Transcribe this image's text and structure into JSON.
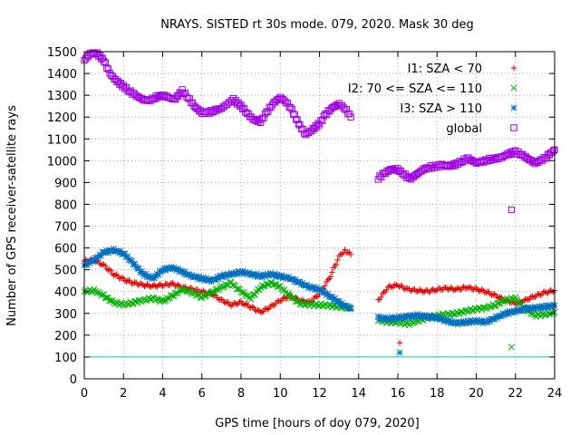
{
  "chart_data": {
    "type": "scatter",
    "title": "NRAYS. SISTED rt 30s mode. 079, 2020. Mask 30 deg",
    "xlabel": "GPS time [hours of doy 079, 2020]",
    "ylabel": "Number of GPS receiver-satellite rays",
    "xlim": [
      0,
      24
    ],
    "ylim": [
      0,
      1500
    ],
    "x_ticks": [
      0,
      2,
      4,
      6,
      8,
      10,
      12,
      14,
      16,
      18,
      20,
      22,
      24
    ],
    "y_ticks": [
      0,
      100,
      200,
      300,
      400,
      500,
      600,
      700,
      800,
      900,
      1000,
      1100,
      1200,
      1300,
      1400,
      1500
    ],
    "grid": true,
    "legend_position": "top-right",
    "reference_line": {
      "y": 100,
      "color": "#00c8d8"
    },
    "series": [
      {
        "name": "I1: SZA < 70",
        "marker": "+",
        "color": "#e00000",
        "points": [
          [
            0,
            540
          ],
          [
            0.5,
            545
          ],
          [
            1,
            520
          ],
          [
            1.5,
            480
          ],
          [
            2,
            455
          ],
          [
            2.5,
            440
          ],
          [
            3,
            430
          ],
          [
            3.5,
            425
          ],
          [
            4,
            430
          ],
          [
            4.5,
            435
          ],
          [
            5,
            420
          ],
          [
            5.5,
            410
          ],
          [
            6,
            400
          ],
          [
            6.5,
            390
          ],
          [
            7,
            360
          ],
          [
            7.5,
            340
          ],
          [
            8,
            350
          ],
          [
            8.5,
            330
          ],
          [
            9,
            305
          ],
          [
            9.5,
            330
          ],
          [
            10,
            360
          ],
          [
            10.5,
            380
          ],
          [
            11,
            360
          ],
          [
            11.5,
            350
          ],
          [
            12,
            390
          ],
          [
            12.5,
            460
          ],
          [
            13,
            560
          ],
          [
            13.3,
            590
          ],
          [
            13.6,
            570
          ],
          [
            15,
            360
          ],
          [
            15.5,
            420
          ],
          [
            16,
            430
          ],
          [
            16.5,
            410
          ],
          [
            17,
            405
          ],
          [
            17.5,
            400
          ],
          [
            18,
            410
          ],
          [
            18.5,
            415
          ],
          [
            19,
            410
          ],
          [
            19.5,
            420
          ],
          [
            20,
            410
          ],
          [
            20.5,
            400
          ],
          [
            21,
            380
          ],
          [
            21.5,
            360
          ],
          [
            22,
            345
          ],
          [
            22.5,
            360
          ],
          [
            23,
            380
          ],
          [
            23.5,
            395
          ],
          [
            24,
            405
          ],
          [
            16.1,
            165
          ]
        ]
      },
      {
        "name": "I2: 70 <= SZA <= 110",
        "marker": "x",
        "color": "#00b000",
        "points": [
          [
            0,
            400
          ],
          [
            0.5,
            405
          ],
          [
            1,
            380
          ],
          [
            1.5,
            350
          ],
          [
            2,
            340
          ],
          [
            2.5,
            350
          ],
          [
            3,
            360
          ],
          [
            3.5,
            370
          ],
          [
            4,
            355
          ],
          [
            4.5,
            380
          ],
          [
            5,
            410
          ],
          [
            5.5,
            395
          ],
          [
            6,
            375
          ],
          [
            6.5,
            395
          ],
          [
            7,
            420
          ],
          [
            7.5,
            440
          ],
          [
            8,
            400
          ],
          [
            8.5,
            370
          ],
          [
            9,
            420
          ],
          [
            9.5,
            440
          ],
          [
            10,
            420
          ],
          [
            10.5,
            380
          ],
          [
            11,
            345
          ],
          [
            11.5,
            340
          ],
          [
            12,
            340
          ],
          [
            12.5,
            335
          ],
          [
            13,
            330
          ],
          [
            13.6,
            325
          ],
          [
            15,
            270
          ],
          [
            15.5,
            260
          ],
          [
            16,
            260
          ],
          [
            16.5,
            250
          ],
          [
            17,
            265
          ],
          [
            17.5,
            280
          ],
          [
            18,
            290
          ],
          [
            18.5,
            295
          ],
          [
            19,
            300
          ],
          [
            19.5,
            310
          ],
          [
            20,
            320
          ],
          [
            20.5,
            325
          ],
          [
            21,
            340
          ],
          [
            21.5,
            360
          ],
          [
            22,
            370
          ],
          [
            22.5,
            320
          ],
          [
            23,
            290
          ],
          [
            23.5,
            295
          ],
          [
            24,
            305
          ],
          [
            21.8,
            145
          ]
        ]
      },
      {
        "name": "I3: SZA > 110",
        "marker": "*",
        "color": "#0070c0",
        "points": [
          [
            0,
            520
          ],
          [
            0.5,
            545
          ],
          [
            1,
            580
          ],
          [
            1.5,
            590
          ],
          [
            2,
            575
          ],
          [
            2.5,
            530
          ],
          [
            3,
            480
          ],
          [
            3.5,
            460
          ],
          [
            4,
            500
          ],
          [
            4.5,
            510
          ],
          [
            5,
            490
          ],
          [
            5.5,
            470
          ],
          [
            6,
            460
          ],
          [
            6.5,
            450
          ],
          [
            7,
            470
          ],
          [
            7.5,
            480
          ],
          [
            8,
            490
          ],
          [
            8.5,
            480
          ],
          [
            9,
            470
          ],
          [
            9.5,
            480
          ],
          [
            10,
            470
          ],
          [
            10.5,
            460
          ],
          [
            11,
            440
          ],
          [
            11.5,
            420
          ],
          [
            12,
            410
          ],
          [
            12.5,
            380
          ],
          [
            13,
            350
          ],
          [
            13.6,
            320
          ],
          [
            15,
            280
          ],
          [
            15.5,
            275
          ],
          [
            16,
            280
          ],
          [
            16.5,
            285
          ],
          [
            17,
            290
          ],
          [
            17.5,
            285
          ],
          [
            18,
            280
          ],
          [
            18.5,
            265
          ],
          [
            19,
            255
          ],
          [
            19.5,
            260
          ],
          [
            20,
            265
          ],
          [
            20.5,
            260
          ],
          [
            21,
            280
          ],
          [
            21.5,
            300
          ],
          [
            22,
            310
          ],
          [
            22.5,
            320
          ],
          [
            23,
            325
          ],
          [
            23.5,
            330
          ],
          [
            24,
            335
          ],
          [
            16.1,
            120
          ]
        ]
      },
      {
        "name": "global",
        "marker": "square",
        "color": "#a000e0",
        "points": [
          [
            0,
            1460
          ],
          [
            0.3,
            1490
          ],
          [
            0.6,
            1495
          ],
          [
            1,
            1460
          ],
          [
            1.3,
            1400
          ],
          [
            1.6,
            1370
          ],
          [
            2,
            1340
          ],
          [
            2.3,
            1320
          ],
          [
            2.6,
            1300
          ],
          [
            3,
            1280
          ],
          [
            3.3,
            1275
          ],
          [
            3.6,
            1290
          ],
          [
            4,
            1300
          ],
          [
            4.3,
            1290
          ],
          [
            4.6,
            1280
          ],
          [
            5,
            1320
          ],
          [
            5.3,
            1290
          ],
          [
            5.6,
            1250
          ],
          [
            6,
            1220
          ],
          [
            6.3,
            1220
          ],
          [
            6.6,
            1230
          ],
          [
            7,
            1240
          ],
          [
            7.3,
            1260
          ],
          [
            7.6,
            1280
          ],
          [
            8,
            1250
          ],
          [
            8.3,
            1220
          ],
          [
            8.6,
            1190
          ],
          [
            9,
            1180
          ],
          [
            9.3,
            1220
          ],
          [
            9.6,
            1260
          ],
          [
            10,
            1290
          ],
          [
            10.3,
            1270
          ],
          [
            10.6,
            1230
          ],
          [
            11,
            1160
          ],
          [
            11.3,
            1120
          ],
          [
            11.6,
            1140
          ],
          [
            12,
            1170
          ],
          [
            12.3,
            1210
          ],
          [
            12.6,
            1240
          ],
          [
            13,
            1260
          ],
          [
            13.3,
            1240
          ],
          [
            13.6,
            1200
          ],
          [
            15,
            920
          ],
          [
            15.3,
            940
          ],
          [
            15.6,
            960
          ],
          [
            16,
            960
          ],
          [
            16.3,
            940
          ],
          [
            16.6,
            915
          ],
          [
            17,
            940
          ],
          [
            17.3,
            960
          ],
          [
            17.6,
            970
          ],
          [
            18,
            975
          ],
          [
            18.3,
            980
          ],
          [
            18.6,
            975
          ],
          [
            19,
            985
          ],
          [
            19.3,
            1000
          ],
          [
            19.6,
            1010
          ],
          [
            20,
            990
          ],
          [
            20.3,
            995
          ],
          [
            20.6,
            1005
          ],
          [
            21,
            1010
          ],
          [
            21.3,
            1015
          ],
          [
            21.6,
            1030
          ],
          [
            22,
            1040
          ],
          [
            22.3,
            1030
          ],
          [
            22.6,
            1010
          ],
          [
            23,
            990
          ],
          [
            23.3,
            1000
          ],
          [
            23.6,
            1020
          ],
          [
            24,
            1050
          ],
          [
            21.8,
            775
          ]
        ]
      }
    ]
  }
}
